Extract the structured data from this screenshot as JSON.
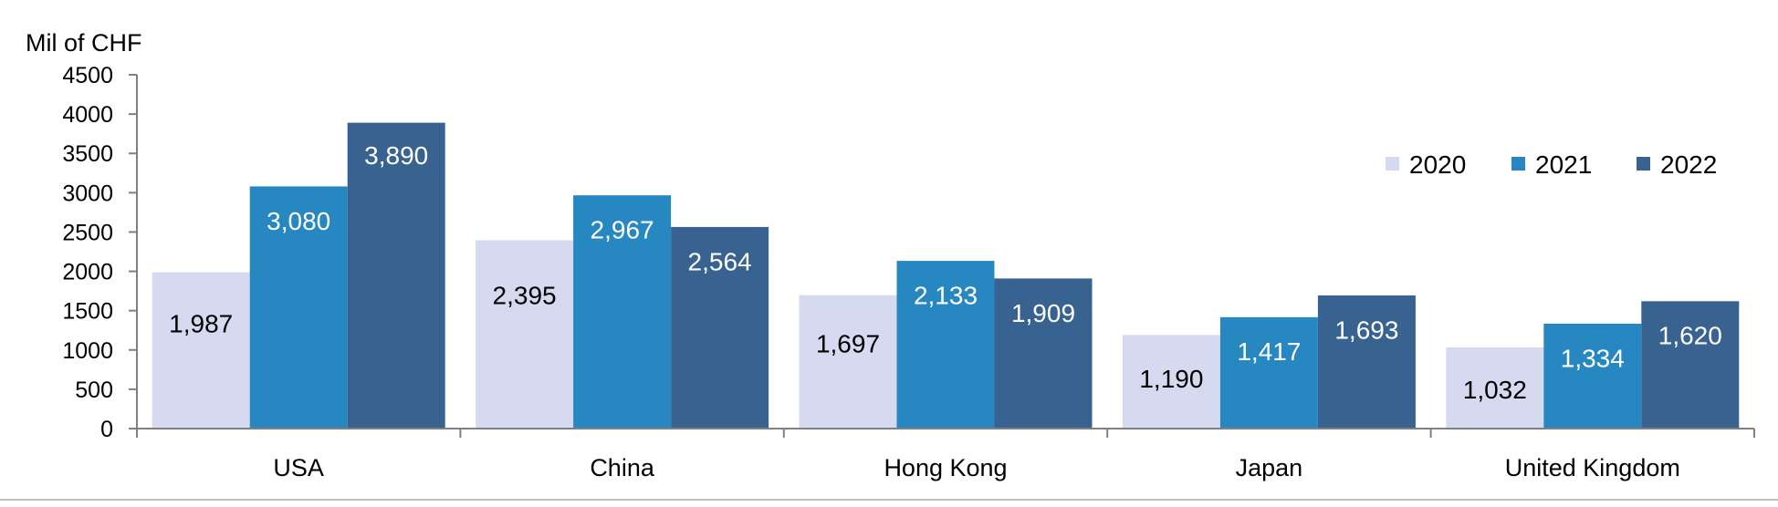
{
  "chart_data": {
    "type": "bar",
    "ylabel": "Mil of CHF",
    "categories": [
      "USA",
      "China",
      "Hong Kong",
      "Japan",
      "United Kingdom"
    ],
    "series": [
      {
        "name": "2020",
        "color": "#d5daf0",
        "label_color": "#000000",
        "values": [
          1987,
          2395,
          1697,
          1190,
          1032
        ],
        "labels": [
          "1,987",
          "2,395",
          "1,697",
          "1,190",
          "1,032"
        ]
      },
      {
        "name": "2021",
        "color": "#2787c0",
        "label_color": "#ffffff",
        "values": [
          3080,
          2967,
          2133,
          1417,
          1334
        ],
        "labels": [
          "3,080",
          "2,967",
          "2,133",
          "1,417",
          "1,334"
        ]
      },
      {
        "name": "2022",
        "color": "#38628f",
        "label_color": "#ffffff",
        "values": [
          3890,
          2564,
          1909,
          1693,
          1620
        ],
        "labels": [
          "3,890",
          "2,564",
          "1,909",
          "1,693",
          "1,620"
        ]
      }
    ],
    "ylim": [
      0,
      4500
    ],
    "yticks": [
      0,
      500,
      1000,
      1500,
      2000,
      2500,
      3000,
      3500,
      4000,
      4500
    ],
    "grid": false,
    "legend": "top-right"
  }
}
